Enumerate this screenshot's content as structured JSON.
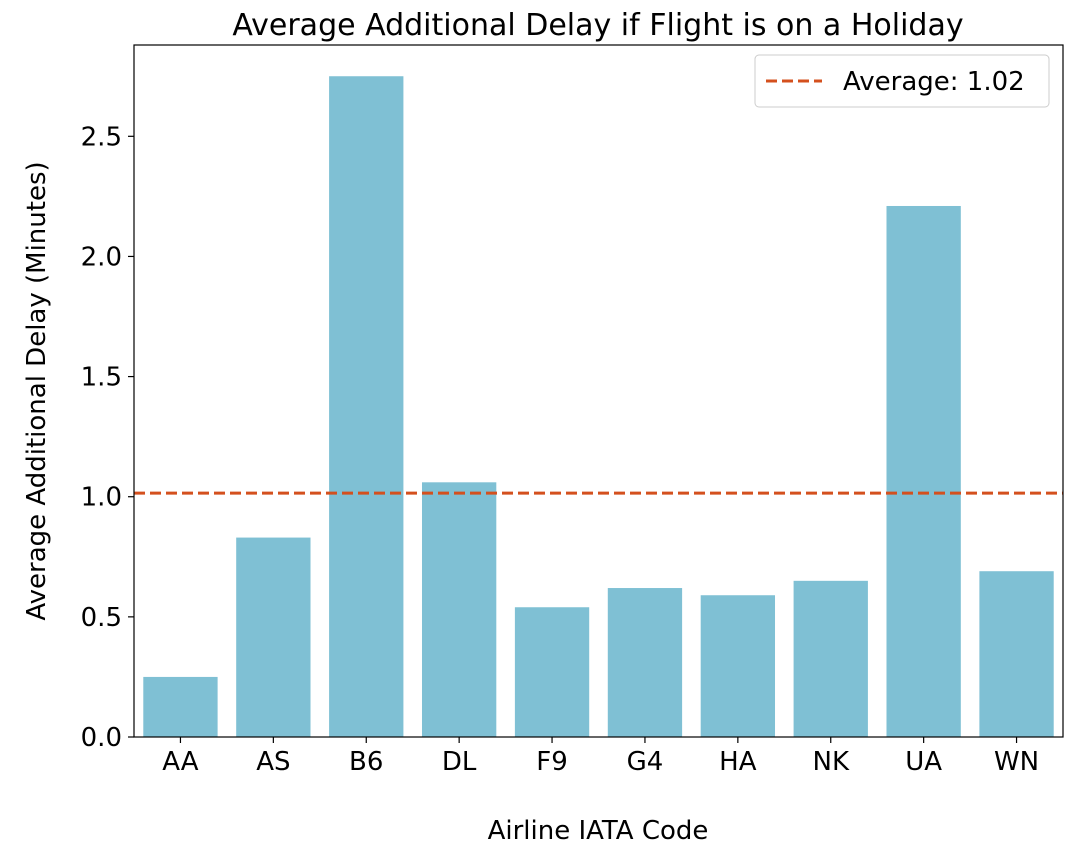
{
  "chart_data": {
    "type": "bar",
    "title": "Average Additional Delay if Flight is on a Holiday",
    "xlabel": "Airline IATA Code",
    "ylabel": "Average Additional Delay (Minutes)",
    "categories": [
      "AA",
      "AS",
      "B6",
      "DL",
      "F9",
      "G4",
      "HA",
      "NK",
      "UA",
      "WN"
    ],
    "values": [
      0.25,
      0.83,
      2.75,
      1.06,
      0.54,
      0.62,
      0.59,
      0.65,
      2.21,
      0.69
    ],
    "ylim": [
      0,
      2.88
    ],
    "yticks": [
      0.0,
      0.5,
      1.0,
      1.5,
      2.0,
      2.5
    ],
    "ytick_labels": [
      "0.0",
      "0.5",
      "1.0",
      "1.5",
      "2.0",
      "2.5"
    ],
    "grid": false,
    "bar_color": "#7fc0d4",
    "reference_line": {
      "value": 1.015,
      "label": "Average: 1.02",
      "color": "#d4501e",
      "style": "dashed"
    },
    "legend": {
      "position": "top-right",
      "entries": [
        "Average: 1.02"
      ]
    }
  }
}
